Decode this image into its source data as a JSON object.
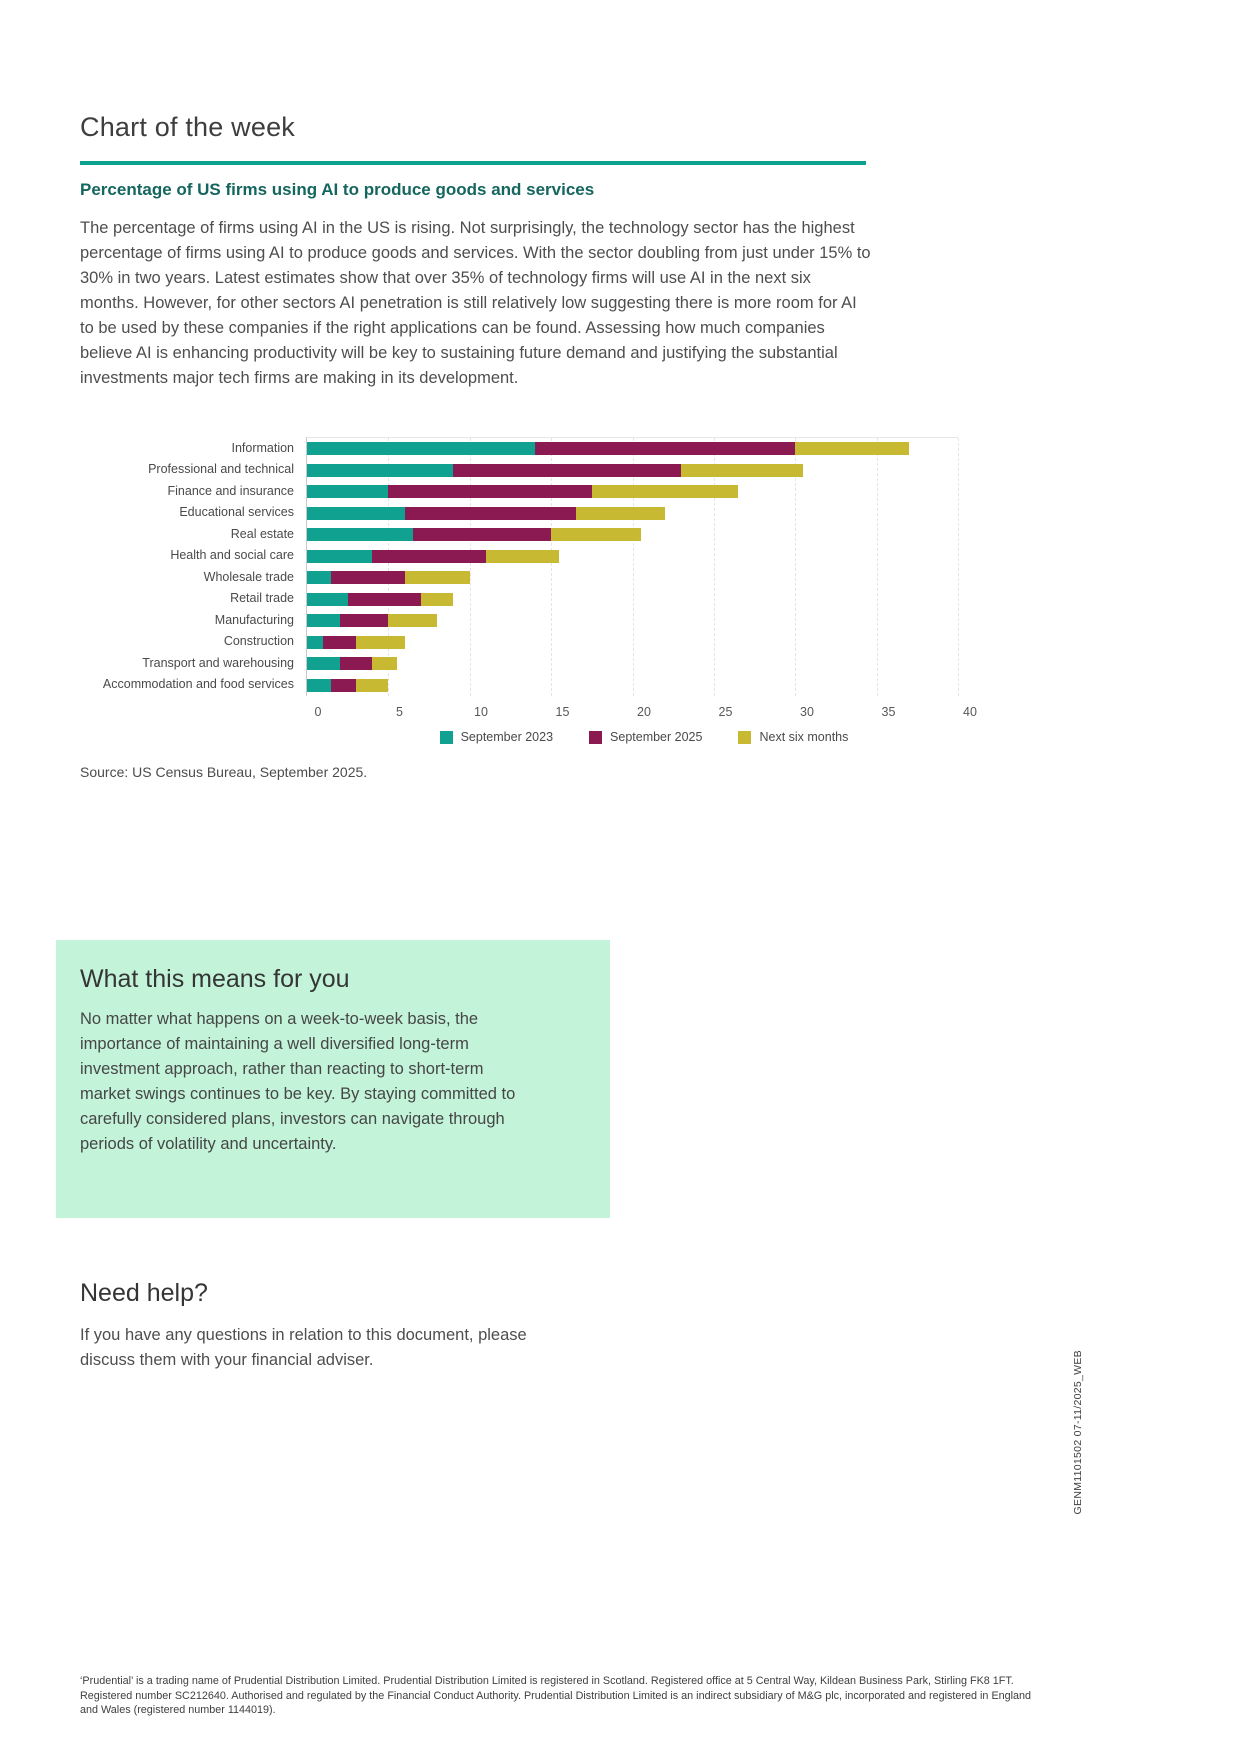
{
  "page": {
    "title": "Chart of the week",
    "accent_color": "#0ba292",
    "subtitle_color": "#14665e"
  },
  "article": {
    "heading": "Percentage of US firms using AI to produce goods and services",
    "body": "The percentage of firms using AI in the US is rising. Not surprisingly, the technology sector has the highest percentage of firms using AI to produce goods and services. With the sector doubling from just under 15% to 30% in two years. Latest estimates show that over 35% of technology firms will use AI in the next six months. However, for other sectors AI penetration is still relatively low suggesting there is more room for AI to be used by these companies if the right applications can be found. Assessing how much companies believe AI is enhancing productivity will be key to sustaining future demand and justifying the substantial investments major tech firms are making in its development."
  },
  "chart_data": {
    "type": "bar",
    "orientation": "horizontal",
    "stacked": true,
    "values_are_cumulative": true,
    "categories": [
      "Information",
      "Professional and technical",
      "Finance and insurance",
      "Educational services",
      "Real estate",
      "Health and social care",
      "Wholesale trade",
      "Retail trade",
      "Manufacturing",
      "Construction",
      "Transport and warehousing",
      "Accommodation and food services"
    ],
    "series": [
      {
        "name": "September 2023",
        "color": "#10a191",
        "values": [
          14,
          9,
          5,
          6,
          6.5,
          4,
          1.5,
          2.5,
          2,
          1,
          2,
          1.5
        ]
      },
      {
        "name": "September 2025",
        "color": "#8a1a51",
        "values": [
          30,
          23,
          17.5,
          16.5,
          15,
          11,
          6,
          7,
          5,
          3,
          4,
          3
        ]
      },
      {
        "name": "Next six months",
        "color": "#c8b933",
        "values": [
          37,
          30.5,
          26.5,
          22,
          20.5,
          15.5,
          10,
          9,
          8,
          6,
          5.5,
          5
        ]
      }
    ],
    "xlabel": "",
    "ylabel": "",
    "xlim": [
      0,
      40
    ],
    "x_ticks": [
      0,
      5,
      10,
      15,
      20,
      25,
      30,
      35,
      40
    ],
    "grid": "vertical-dashed",
    "legend_position": "bottom-center"
  },
  "source_note": "Source: US Census Bureau, September 2025.",
  "callout": {
    "heading": "What this means for you",
    "body": "No matter what happens on a week-to-week basis, the importance of maintaining a well diversified long-term investment approach, rather than reacting to short-term market swings continues to be key. By staying committed to carefully considered plans, investors can navigate through periods of volatility and uncertainty.",
    "background": "#c3f3d8"
  },
  "help": {
    "heading": "Need help?",
    "body": "If you have any questions in relation to this document, please discuss them with your financial adviser."
  },
  "footer": {
    "legal": "‘Prudential’ is a trading name of Prudential Distribution Limited. Prudential Distribution Limited is registered in Scotland. Registered office at 5 Central Way, Kildean Business Park, Stirling FK8 1FT. Registered number SC212640. Authorised and regulated by the Financial Conduct Authority. Prudential Distribution Limited is an indirect subsidiary of M&G plc, incorporated and registered in England and Wales (registered number 1144019).",
    "doc_code": "GENM1101502 07-11/2025_WEB"
  }
}
